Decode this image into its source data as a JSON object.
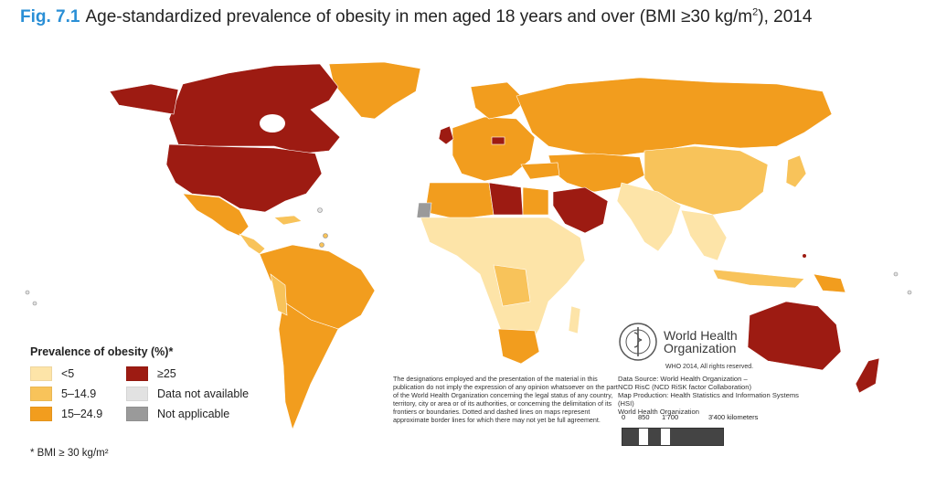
{
  "title": {
    "fig_label": "Fig. 7.1",
    "text_before_sup": "Age-standardized prevalence of obesity in men aged 18 years and over (BMI ≥30 kg/m",
    "sup": "2",
    "text_after_sup": "), 2014"
  },
  "legend": {
    "title": "Prevalence of obesity (%)*",
    "items": [
      {
        "label": "<5",
        "color": "#fde4a8"
      },
      {
        "label": "≥25",
        "color": "#9d1b12"
      },
      {
        "label": "5–14.9",
        "color": "#f8c35a"
      },
      {
        "label": "Data not available",
        "color": "#e2e2e2"
      },
      {
        "label": "15–24.9",
        "color": "#f29d1e"
      },
      {
        "label": "Not applicable",
        "color": "#9a9a9a"
      }
    ]
  },
  "footnote": "* BMI ≥ 30 kg/m²",
  "disclaimer": "The designations employed and the presentation of the material in this publication do not imply the expression of any opinion whatsoever on the part of the World Health Organization concerning the legal status of any country, territory, city or area or of its authorities, or concerning the delimitation of its frontiers or boundaries. Dotted and dashed lines on maps represent approximate border lines for which there may not yet be full agreement.",
  "who": {
    "name_line1": "World Health",
    "name_line2": "Organization",
    "rights": "WHO 2014, All rights reserved.",
    "source_lines": [
      "Data Source: World Health Organization –",
      "NCD RisC (NCD RiSK factor Collaboration)",
      "Map Production: Health Statistics and Information Systems (HSI)",
      "World Health Organization"
    ]
  },
  "scale": {
    "labels": [
      "0",
      "850",
      "1'700",
      "3'400 kilometers"
    ]
  },
  "colors": {
    "title_accent": "#2a8fd6",
    "low": "#fde4a8",
    "mid": "#f8c35a",
    "high": "#f29d1e",
    "very_high": "#9d1b12",
    "no_data": "#e2e2e2",
    "not_applicable": "#9a9a9a"
  }
}
